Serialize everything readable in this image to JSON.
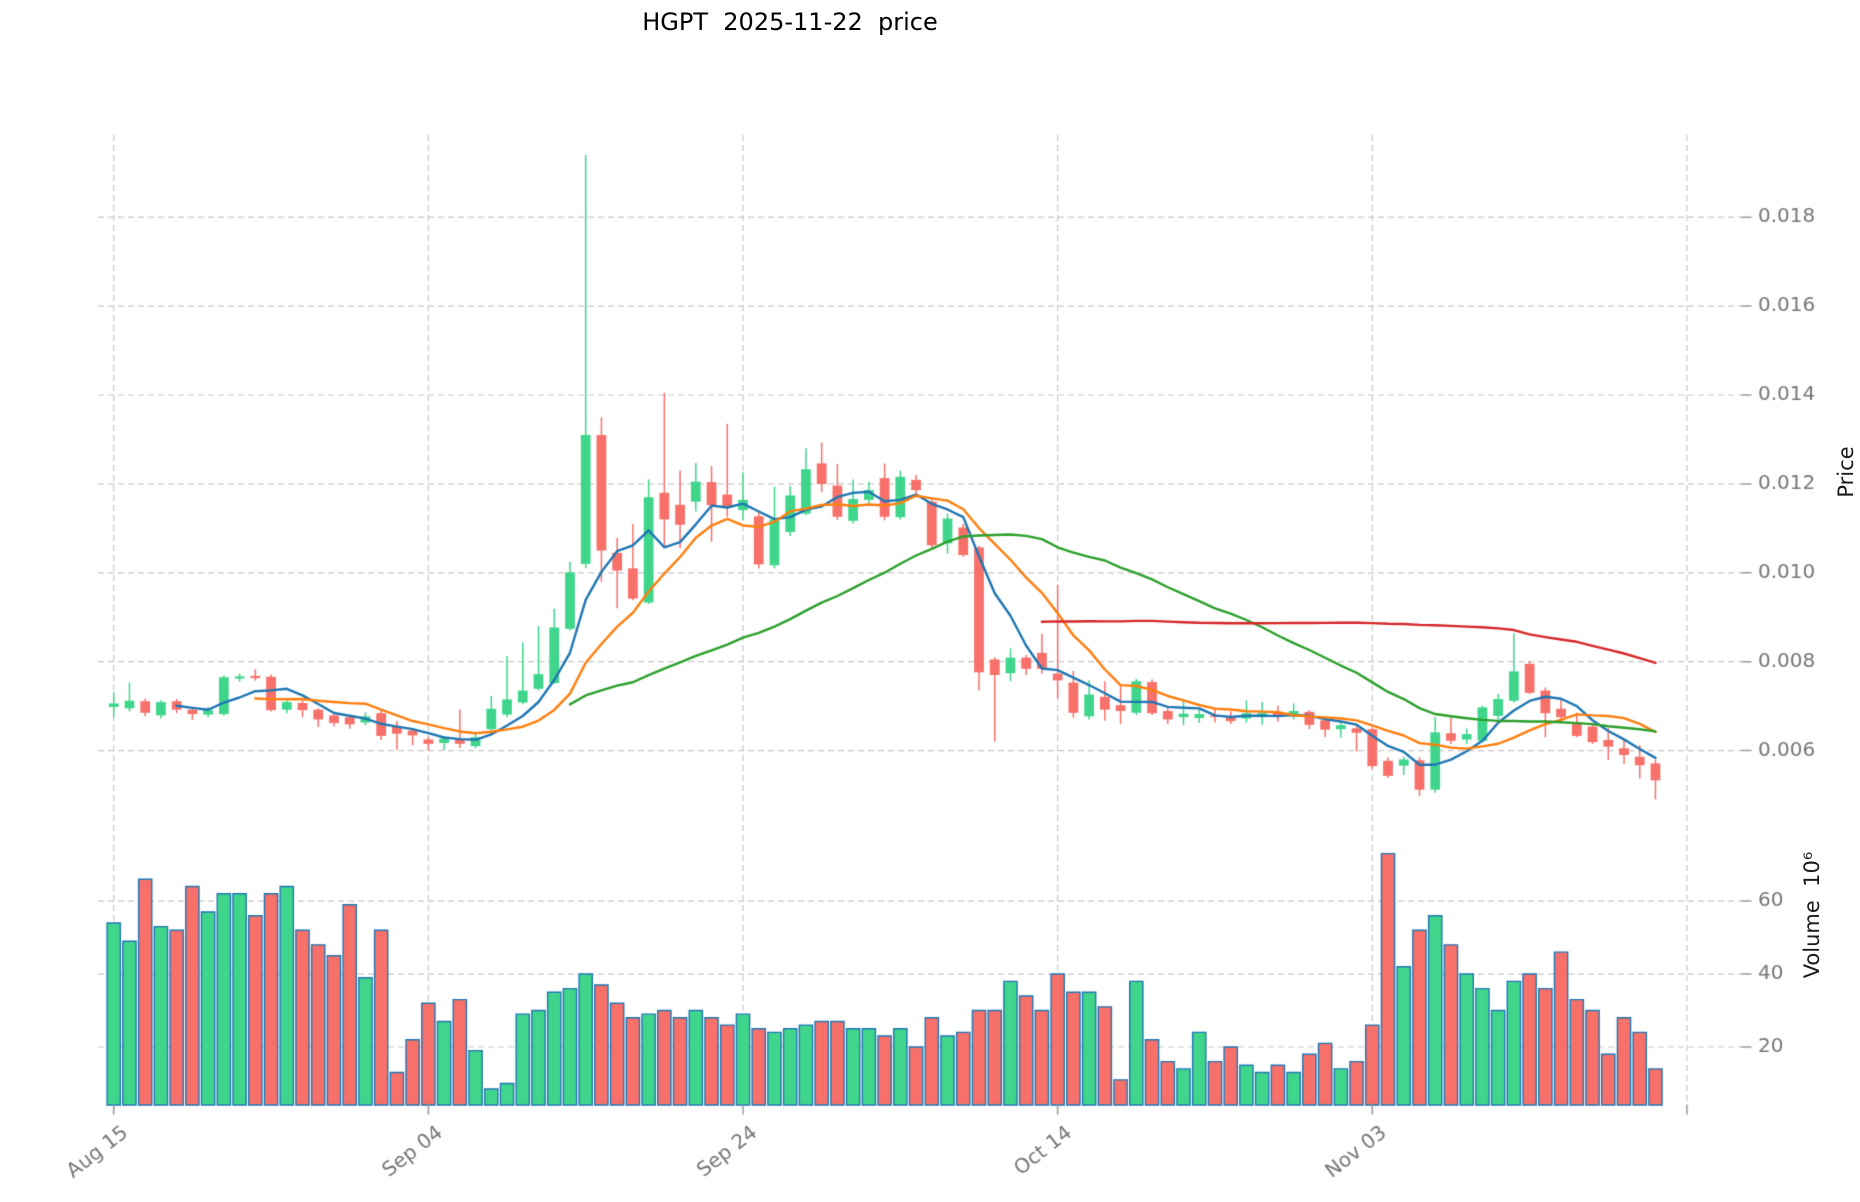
{
  "title": "HGPT  2025-11-22  price",
  "chart_data": {
    "type": "candlestick+volume",
    "title": "HGPT  2025-11-22  price",
    "grid": true,
    "price_axis": {
      "label": "Price",
      "side": "right",
      "tick_labels": [
        "0.006",
        "0.008",
        "0.010",
        "0.012",
        "0.014",
        "0.016",
        "0.018"
      ],
      "ticks": [
        0.006,
        0.008,
        0.01,
        0.012,
        0.014,
        0.016,
        0.018
      ],
      "ylim": [
        0.00455,
        0.01985
      ]
    },
    "volume_axis": {
      "label": "Volume  10⁶",
      "side": "right",
      "tick_labels": [
        "20",
        "40",
        "60"
      ],
      "ticks": [
        20,
        40,
        60
      ],
      "ylim": [
        4.1,
        83.6
      ]
    },
    "x_tick_labels": [
      "Aug 15",
      "Sep 04",
      "Sep 24",
      "Oct 14",
      "Nov 03"
    ],
    "x_tick_indices": [
      0,
      20,
      40,
      60,
      80
    ],
    "x_unlabeled_tick_index": 100,
    "xlim": [
      -1,
      103.5
    ],
    "moving_averages": [
      {
        "name": "MA5",
        "window": 5,
        "color": "#1f77b4"
      },
      {
        "name": "MA10",
        "window": 10,
        "color": "#ff7f0e"
      },
      {
        "name": "MA30",
        "window": 30,
        "color": "#2ca02c"
      },
      {
        "name": "MA60",
        "window": 60,
        "color": "#d62728"
      }
    ],
    "colors": {
      "up": "#3fd68c",
      "down": "#f7706a",
      "volume_edge": "#2077b4",
      "grid": "#c9c9c9",
      "tick_label": "#777777",
      "axis_label": "#1a1a1a",
      "background": "#ffffff"
    },
    "dates": [
      "2025-08-15",
      "2025-08-16",
      "2025-08-17",
      "2025-08-18",
      "2025-08-19",
      "2025-08-20",
      "2025-08-21",
      "2025-08-22",
      "2025-08-23",
      "2025-08-24",
      "2025-08-25",
      "2025-08-26",
      "2025-08-27",
      "2025-08-28",
      "2025-08-29",
      "2025-08-30",
      "2025-08-31",
      "2025-09-01",
      "2025-09-02",
      "2025-09-03",
      "2025-09-04",
      "2025-09-05",
      "2025-09-06",
      "2025-09-07",
      "2025-09-08",
      "2025-09-09",
      "2025-09-10",
      "2025-09-11",
      "2025-09-12",
      "2025-09-13",
      "2025-09-14",
      "2025-09-15",
      "2025-09-16",
      "2025-09-17",
      "2025-09-18",
      "2025-09-19",
      "2025-09-20",
      "2025-09-21",
      "2025-09-22",
      "2025-09-23",
      "2025-09-24",
      "2025-09-25",
      "2025-09-26",
      "2025-09-27",
      "2025-09-28",
      "2025-09-29",
      "2025-09-30",
      "2025-10-01",
      "2025-10-02",
      "2025-10-03",
      "2025-10-04",
      "2025-10-05",
      "2025-10-06",
      "2025-10-07",
      "2025-10-08",
      "2025-10-09",
      "2025-10-10",
      "2025-10-11",
      "2025-10-12",
      "2025-10-13",
      "2025-10-14",
      "2025-10-15",
      "2025-10-16",
      "2025-10-17",
      "2025-10-18",
      "2025-10-19",
      "2025-10-20",
      "2025-10-21",
      "2025-10-22",
      "2025-10-23",
      "2025-10-24",
      "2025-10-25",
      "2025-10-26",
      "2025-10-27",
      "2025-10-28",
      "2025-10-29",
      "2025-10-30",
      "2025-10-31",
      "2025-11-01",
      "2025-11-02",
      "2025-11-03",
      "2025-11-04",
      "2025-11-05",
      "2025-11-06",
      "2025-11-07",
      "2025-11-08",
      "2025-11-09",
      "2025-11-10",
      "2025-11-11",
      "2025-11-12",
      "2025-11-13",
      "2025-11-14",
      "2025-11-15",
      "2025-11-16",
      "2025-11-17",
      "2025-11-18",
      "2025-11-19",
      "2025-11-20",
      "2025-11-21"
    ],
    "ohlc": [
      [
        0.00698,
        0.00731,
        0.00675,
        0.00706
      ],
      [
        0.00695,
        0.00753,
        0.00688,
        0.00712
      ],
      [
        0.00711,
        0.00717,
        0.00678,
        0.00685
      ],
      [
        0.00679,
        0.00713,
        0.00672,
        0.00709
      ],
      [
        0.00711,
        0.00716,
        0.00684,
        0.00692
      ],
      [
        0.00692,
        0.00697,
        0.00669,
        0.00682
      ],
      [
        0.00681,
        0.00698,
        0.00675,
        0.00691
      ],
      [
        0.00682,
        0.00769,
        0.00679,
        0.00765
      ],
      [
        0.00762,
        0.00773,
        0.00755,
        0.00767
      ],
      [
        0.00768,
        0.00783,
        0.00757,
        0.00763
      ],
      [
        0.00766,
        0.00771,
        0.00688,
        0.00691
      ],
      [
        0.00692,
        0.00713,
        0.00684,
        0.00709
      ],
      [
        0.00707,
        0.00712,
        0.00675,
        0.00691
      ],
      [
        0.00692,
        0.00695,
        0.00653,
        0.0067
      ],
      [
        0.00679,
        0.00684,
        0.00654,
        0.00662
      ],
      [
        0.00675,
        0.0068,
        0.00649,
        0.00659
      ],
      [
        0.00663,
        0.00686,
        0.00657,
        0.00677
      ],
      [
        0.00684,
        0.00689,
        0.00624,
        0.00633
      ],
      [
        0.00655,
        0.00666,
        0.00602,
        0.00638
      ],
      [
        0.00645,
        0.00649,
        0.00612,
        0.00634
      ],
      [
        0.00625,
        0.00631,
        0.006,
        0.00615
      ],
      [
        0.00617,
        0.00632,
        0.00601,
        0.00627
      ],
      [
        0.00625,
        0.00693,
        0.00606,
        0.00615
      ],
      [
        0.0061,
        0.00638,
        0.00605,
        0.0063
      ],
      [
        0.00648,
        0.00723,
        0.00645,
        0.00694
      ],
      [
        0.00681,
        0.00813,
        0.00675,
        0.00715
      ],
      [
        0.00708,
        0.00843,
        0.00705,
        0.00735
      ],
      [
        0.00739,
        0.0088,
        0.00735,
        0.00772
      ],
      [
        0.00752,
        0.00919,
        0.0075,
        0.00877
      ],
      [
        0.00874,
        0.01025,
        0.0087,
        0.01001
      ],
      [
        0.0102,
        0.0194,
        0.0101,
        0.0131
      ],
      [
        0.0131,
        0.0135,
        0.0098,
        0.0105
      ],
      [
        0.01045,
        0.01078,
        0.0092,
        0.01005
      ],
      [
        0.0101,
        0.0111,
        0.00938,
        0.00942
      ],
      [
        0.00933,
        0.0121,
        0.0093,
        0.0117
      ],
      [
        0.0118,
        0.01405,
        0.0106,
        0.0112
      ],
      [
        0.01153,
        0.0123,
        0.01055,
        0.01108
      ],
      [
        0.0116,
        0.01247,
        0.01138,
        0.01205
      ],
      [
        0.01204,
        0.0124,
        0.0107,
        0.01152
      ],
      [
        0.01176,
        0.01335,
        0.01126,
        0.01149
      ],
      [
        0.01141,
        0.01226,
        0.01119,
        0.01164
      ],
      [
        0.01127,
        0.0114,
        0.0101,
        0.01019
      ],
      [
        0.01017,
        0.01194,
        0.0101,
        0.0112
      ],
      [
        0.01092,
        0.01196,
        0.01083,
        0.01174
      ],
      [
        0.01133,
        0.0128,
        0.0113,
        0.01233
      ],
      [
        0.01246,
        0.01293,
        0.01181,
        0.012
      ],
      [
        0.01196,
        0.01245,
        0.01119,
        0.01126
      ],
      [
        0.01117,
        0.0121,
        0.01111,
        0.01166
      ],
      [
        0.01164,
        0.01205,
        0.0115,
        0.01186
      ],
      [
        0.01213,
        0.01246,
        0.01118,
        0.01126
      ],
      [
        0.01125,
        0.0123,
        0.0112,
        0.01216
      ],
      [
        0.01209,
        0.0122,
        0.0117,
        0.01186
      ],
      [
        0.0116,
        0.01165,
        0.01055,
        0.01062
      ],
      [
        0.01066,
        0.01133,
        0.01043,
        0.01122
      ],
      [
        0.01102,
        0.0111,
        0.01036,
        0.0104
      ],
      [
        0.01057,
        0.0106,
        0.00735,
        0.00776
      ],
      [
        0.00805,
        0.0081,
        0.0062,
        0.0077
      ],
      [
        0.00774,
        0.0083,
        0.00756,
        0.00809
      ],
      [
        0.00809,
        0.00815,
        0.0077,
        0.00784
      ],
      [
        0.0082,
        0.00862,
        0.00773,
        0.00784
      ],
      [
        0.00773,
        0.00973,
        0.00717,
        0.00758
      ],
      [
        0.00753,
        0.00779,
        0.00674,
        0.00685
      ],
      [
        0.00677,
        0.00758,
        0.0067,
        0.00726
      ],
      [
        0.00721,
        0.00756,
        0.00667,
        0.00692
      ],
      [
        0.00702,
        0.00749,
        0.0066,
        0.00689
      ],
      [
        0.00685,
        0.00761,
        0.0068,
        0.00756
      ],
      [
        0.00754,
        0.0076,
        0.0068,
        0.00684
      ],
      [
        0.00689,
        0.007,
        0.0066,
        0.0067
      ],
      [
        0.00675,
        0.00715,
        0.00657,
        0.00683
      ],
      [
        0.00673,
        0.00696,
        0.00662,
        0.00682
      ],
      [
        0.00679,
        0.00695,
        0.00663,
        0.00677
      ],
      [
        0.00674,
        0.00688,
        0.0066,
        0.00666
      ],
      [
        0.00672,
        0.00713,
        0.00663,
        0.00684
      ],
      [
        0.00675,
        0.00709,
        0.00658,
        0.00684
      ],
      [
        0.00687,
        0.00701,
        0.00665,
        0.00676
      ],
      [
        0.00677,
        0.00706,
        0.0067,
        0.00689
      ],
      [
        0.00687,
        0.00691,
        0.00648,
        0.00658
      ],
      [
        0.00668,
        0.00676,
        0.0063,
        0.00647
      ],
      [
        0.00648,
        0.00664,
        0.00629,
        0.00657
      ],
      [
        0.0065,
        0.00655,
        0.00598,
        0.0064
      ],
      [
        0.00648,
        0.00652,
        0.00559,
        0.00565
      ],
      [
        0.00577,
        0.00585,
        0.00538,
        0.00543
      ],
      [
        0.00566,
        0.00586,
        0.00545,
        0.0058
      ],
      [
        0.00578,
        0.00585,
        0.00498,
        0.00512
      ],
      [
        0.00512,
        0.00675,
        0.00505,
        0.00641
      ],
      [
        0.00639,
        0.00675,
        0.00615,
        0.00622
      ],
      [
        0.00625,
        0.0065,
        0.00615,
        0.00637
      ],
      [
        0.00622,
        0.00701,
        0.00618,
        0.00697
      ],
      [
        0.00678,
        0.00727,
        0.0067,
        0.00716
      ],
      [
        0.00712,
        0.00864,
        0.00708,
        0.00778
      ],
      [
        0.00795,
        0.00801,
        0.00727,
        0.0073
      ],
      [
        0.00735,
        0.00742,
        0.0063,
        0.00684
      ],
      [
        0.00694,
        0.00717,
        0.00662,
        0.00675
      ],
      [
        0.00664,
        0.00685,
        0.0063,
        0.00633
      ],
      [
        0.00654,
        0.0066,
        0.00615,
        0.00619
      ],
      [
        0.00624,
        0.0065,
        0.00579,
        0.00609
      ],
      [
        0.00605,
        0.00625,
        0.0057,
        0.0059
      ],
      [
        0.00586,
        0.00612,
        0.00537,
        0.00567
      ],
      [
        0.00571,
        0.0058,
        0.0049,
        0.00533
      ]
    ],
    "volume": [
      54,
      49,
      66,
      53,
      52,
      64,
      57,
      62,
      62,
      56,
      62,
      64,
      52,
      48,
      45,
      59,
      39,
      52,
      13,
      22,
      32,
      27,
      33,
      19,
      8.5,
      10,
      29,
      30,
      35,
      36,
      40,
      37,
      32,
      28,
      29,
      30,
      28,
      30,
      28,
      26,
      29,
      25,
      24,
      25,
      26,
      27,
      27,
      25,
      25,
      23,
      25,
      20,
      28,
      23,
      24,
      30,
      30,
      38,
      34,
      30,
      40,
      35,
      35,
      31,
      11,
      38,
      22,
      16,
      14,
      24,
      16,
      20,
      15,
      13,
      15,
      13,
      18,
      21,
      14,
      16,
      26,
      73,
      42,
      52,
      56,
      48,
      40,
      36,
      30,
      38,
      40,
      36,
      46,
      33,
      30,
      18,
      28,
      24,
      14
    ]
  }
}
